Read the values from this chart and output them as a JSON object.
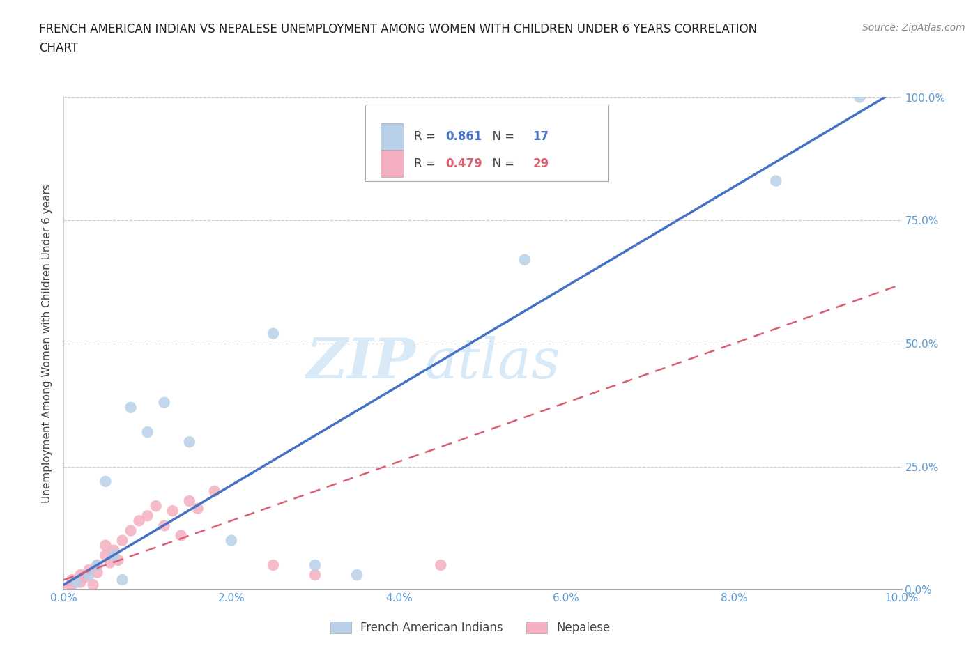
{
  "title_line1": "FRENCH AMERICAN INDIAN VS NEPALESE UNEMPLOYMENT AMONG WOMEN WITH CHILDREN UNDER 6 YEARS CORRELATION",
  "title_line2": "CHART",
  "source": "Source: ZipAtlas.com",
  "ylabel": "Unemployment Among Women with Children Under 6 years",
  "xlabel": "",
  "xlim": [
    0.0,
    10.0
  ],
  "ylim": [
    0.0,
    100.0
  ],
  "xticks": [
    0.0,
    2.0,
    4.0,
    6.0,
    8.0,
    10.0
  ],
  "yticks": [
    0.0,
    25.0,
    50.0,
    75.0,
    100.0
  ],
  "xtick_labels": [
    "0.0%",
    "2.0%",
    "4.0%",
    "6.0%",
    "8.0%",
    "10.0%"
  ],
  "ytick_labels": [
    "0.0%",
    "25.0%",
    "50.0%",
    "75.0%",
    "100.0%"
  ],
  "blue_R": 0.861,
  "blue_N": 17,
  "pink_R": 0.479,
  "pink_N": 29,
  "blue_color": "#b8d0e8",
  "pink_color": "#f4b0c0",
  "blue_line_color": "#4472c4",
  "pink_line_color": "#d96070",
  "watermark_zip": "ZIP",
  "watermark_atlas": "atlas",
  "blue_scatter_x": [
    0.15,
    0.3,
    0.4,
    0.5,
    0.6,
    0.7,
    0.8,
    1.0,
    1.2,
    1.5,
    2.0,
    2.5,
    3.0,
    3.5,
    5.5,
    8.5,
    9.5
  ],
  "blue_scatter_y": [
    1.5,
    3.0,
    5.0,
    22.0,
    7.0,
    2.0,
    37.0,
    32.0,
    38.0,
    30.0,
    10.0,
    52.0,
    5.0,
    3.0,
    67.0,
    83.0,
    100.0
  ],
  "pink_scatter_x": [
    0.05,
    0.1,
    0.1,
    0.2,
    0.2,
    0.25,
    0.3,
    0.35,
    0.4,
    0.4,
    0.5,
    0.5,
    0.55,
    0.6,
    0.65,
    0.7,
    0.8,
    0.9,
    1.0,
    1.1,
    1.2,
    1.3,
    1.4,
    1.5,
    1.6,
    1.8,
    2.5,
    3.0,
    4.5
  ],
  "pink_scatter_y": [
    0.5,
    1.0,
    2.0,
    1.5,
    3.0,
    2.5,
    4.0,
    1.0,
    3.5,
    5.0,
    7.0,
    9.0,
    5.5,
    8.0,
    6.0,
    10.0,
    12.0,
    14.0,
    15.0,
    17.0,
    13.0,
    16.0,
    11.0,
    18.0,
    16.5,
    20.0,
    5.0,
    3.0,
    5.0
  ],
  "blue_line_x0": 0.0,
  "blue_line_y0": 1.0,
  "blue_line_x1": 9.8,
  "blue_line_y1": 100.0,
  "pink_line_x0": 0.0,
  "pink_line_y0": 2.0,
  "pink_line_x1": 10.0,
  "pink_line_y1": 62.0,
  "background_color": "#ffffff",
  "grid_color": "#cccccc"
}
